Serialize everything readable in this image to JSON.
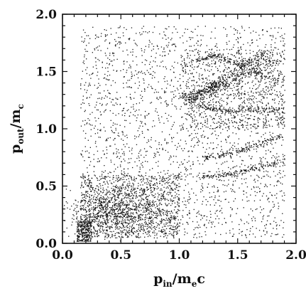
{
  "chart_data": {
    "type": "scatter",
    "title": "",
    "xlabel": {
      "base": "p",
      "sub": "in",
      "rest": "/m",
      "rest_sub": "e",
      "tail": "c"
    },
    "ylabel": {
      "base": "p",
      "sub": "out",
      "rest": "/m",
      "rest_sub": "c",
      "tail": ""
    },
    "xlim": [
      0.0,
      2.0
    ],
    "ylim": [
      0.0,
      2.0
    ],
    "xticks": [
      "0.0",
      "0.5",
      "1.0",
      "1.5",
      "2.0"
    ],
    "yticks": [
      "0.0",
      "0.5",
      "1.0",
      "1.5",
      "2.0"
    ],
    "x_tick_values": [
      0.0,
      0.5,
      1.0,
      1.5,
      2.0
    ],
    "y_tick_values": [
      0.0,
      0.5,
      1.0,
      1.5,
      2.0
    ],
    "grid": false,
    "legend": "none",
    "point_color": "#1a1a1a",
    "series": [
      {
        "density_regions": [
          {
            "x_range": [
              0.15,
              1.9
            ],
            "y_range": [
              0.05,
              1.9
            ],
            "weight": 0.45
          },
          {
            "x_range": [
              0.15,
              1.0
            ],
            "y_range": [
              0.05,
              0.6
            ],
            "weight": 0.2
          },
          {
            "x_range": [
              1.0,
              1.9
            ],
            "y_range": [
              1.0,
              1.7
            ],
            "weight": 0.15
          },
          {
            "x_range": [
              0.12,
              0.25
            ],
            "y_range": [
              0.02,
              0.2
            ],
            "weight": 0.05
          }
        ],
        "features": [
          {
            "type": "band",
            "points": [
              [
                1.05,
                1.22
              ],
              [
                1.4,
                1.45
              ],
              [
                1.75,
                1.68
              ]
            ]
          },
          {
            "type": "band",
            "points": [
              [
                1.05,
                1.28
              ],
              [
                1.35,
                1.38
              ],
              [
                1.85,
                1.6
              ]
            ]
          },
          {
            "type": "arc",
            "points": [
              [
                1.15,
                1.6
              ],
              [
                1.3,
                1.65
              ],
              [
                1.55,
                1.55
              ],
              [
                1.85,
                1.42
              ]
            ]
          },
          {
            "type": "arc",
            "points": [
              [
                1.2,
                0.58
              ],
              [
                1.5,
                0.62
              ],
              [
                1.88,
                0.72
              ]
            ]
          },
          {
            "type": "arc",
            "points": [
              [
                1.2,
                0.75
              ],
              [
                1.55,
                0.82
              ],
              [
                1.88,
                0.95
              ]
            ]
          },
          {
            "type": "arc",
            "points": [
              [
                1.15,
                1.2
              ],
              [
                1.45,
                1.15
              ],
              [
                1.88,
                1.18
              ]
            ]
          }
        ]
      }
    ]
  }
}
